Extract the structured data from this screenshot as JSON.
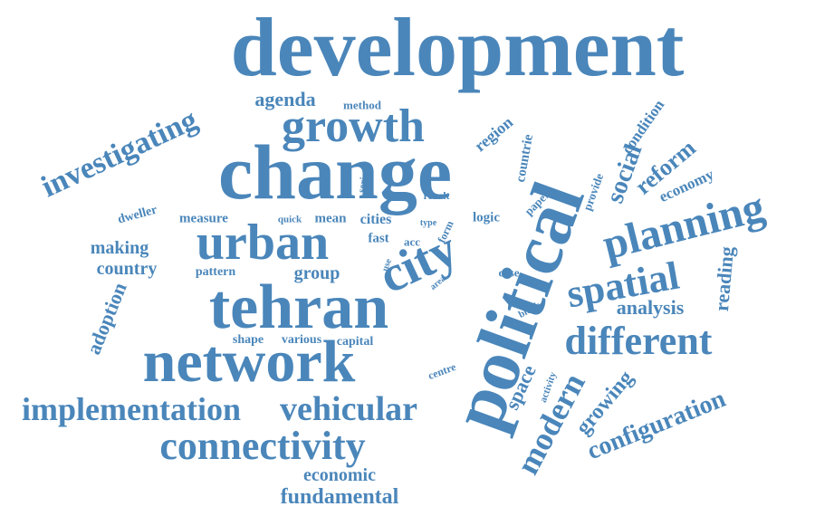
{
  "colors": {
    "word": "#4a86ba",
    "background": "#ffffff"
  },
  "words": [
    "development",
    "change",
    "political",
    "tehran",
    "network",
    "urban",
    "city",
    "growth",
    "planning",
    "spatial",
    "connectivity",
    "different",
    "vehicular",
    "implementation",
    "modern",
    "investigating",
    "configuration",
    "fundamental",
    "growing",
    "social",
    "space",
    "agenda",
    "reform",
    "adoption",
    "analysis",
    "reading",
    "economic",
    "country",
    "making",
    "group",
    "economy",
    "condition",
    "measure",
    "mean",
    "region",
    "countrie",
    "capital",
    "various",
    "shape",
    "pattern",
    "dweller",
    "cities",
    "logic",
    "provide",
    "paper",
    "method",
    "result",
    "series",
    "quick",
    "fast",
    "acc",
    "form",
    "type",
    "use",
    "area",
    "case",
    "block",
    "centre",
    "activity"
  ]
}
